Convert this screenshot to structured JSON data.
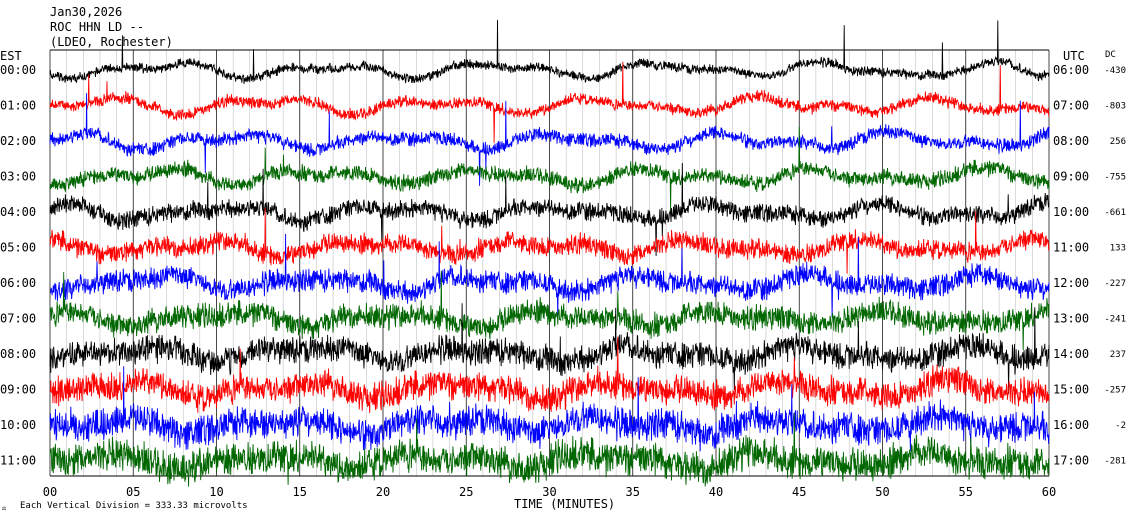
{
  "header": {
    "date": "Jan30,2026",
    "station": "ROC HHN LD --",
    "location": "(LDEO, Rochester)"
  },
  "left_axis_label": "EST",
  "right_axis_label": "UTC",
  "dc_label": "DC",
  "footer": {
    "scale_note": "Each Vertical Division =  333.33 microvolts",
    "x_title": "TIME (MINUTES)"
  },
  "colors": {
    "black": "#000000",
    "red": "#ff0000",
    "blue": "#0000ff",
    "green": "#006600",
    "grid": "#000000"
  },
  "chart_data": {
    "type": "line",
    "description_kind": "helicorder seismogram, 12 hourly traces",
    "x_range_minutes": [
      0,
      60
    ],
    "x_ticks": [
      "00",
      "05",
      "10",
      "15",
      "20",
      "25",
      "30",
      "35",
      "40",
      "45",
      "50",
      "55",
      "60"
    ],
    "rows": [
      {
        "est": "00:00",
        "utc": "06:00",
        "dc": "-430",
        "color": "black"
      },
      {
        "est": "01:00",
        "utc": "07:00",
        "dc": "-803",
        "color": "red"
      },
      {
        "est": "02:00",
        "utc": "08:00",
        "dc": "256",
        "color": "blue"
      },
      {
        "est": "03:00",
        "utc": "09:00",
        "dc": "-755",
        "color": "green"
      },
      {
        "est": "04:00",
        "utc": "10:00",
        "dc": "-661",
        "color": "black"
      },
      {
        "est": "05:00",
        "utc": "11:00",
        "dc": "133",
        "color": "red"
      },
      {
        "est": "06:00",
        "utc": "12:00",
        "dc": "-227",
        "color": "blue"
      },
      {
        "est": "07:00",
        "utc": "13:00",
        "dc": "-241",
        "color": "green"
      },
      {
        "est": "08:00",
        "utc": "14:00",
        "dc": "237",
        "color": "black"
      },
      {
        "est": "09:00",
        "utc": "15:00",
        "dc": "-257",
        "color": "red"
      },
      {
        "est": "10:00",
        "utc": "16:00",
        "dc": "-2",
        "color": "blue"
      },
      {
        "est": "11:00",
        "utc": "17:00",
        "dc": "-281",
        "color": "green"
      }
    ]
  }
}
